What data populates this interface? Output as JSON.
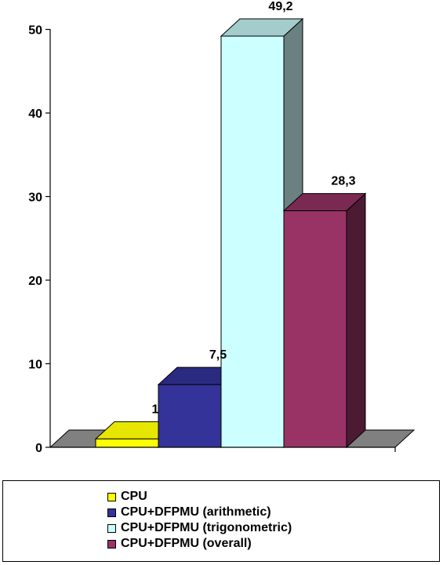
{
  "chart_data": {
    "type": "bar",
    "categories": [
      "CPU",
      "CPU+DFPMU (arithmetic)",
      "CPU+DFPMU (trigonometric)",
      "CPU+DFPMU (overall)"
    ],
    "values": [
      1,
      7.5,
      49.2,
      28.3
    ],
    "data_labels": [
      "1",
      "7,5",
      "49,2",
      "28,3"
    ],
    "title": "",
    "xlabel": "",
    "ylabel": "",
    "ylim": [
      0,
      50
    ],
    "yticks": [
      0,
      10,
      20,
      30,
      40,
      50
    ],
    "grid": false,
    "style": "3d",
    "legend_position": "bottom",
    "legend": [
      "CPU",
      "CPU+DFPMU (arithmetic)",
      "CPU+DFPMU (trigonometric)",
      "CPU+DFPMU (overall)"
    ],
    "colors": [
      "#ffff00",
      "#333399",
      "#ccffff",
      "#993366"
    ],
    "side_colors": [
      "#cccc00",
      "#1a1a4d",
      "#6b8080",
      "#4d1a33"
    ],
    "top_colors": [
      "#e6e600",
      "#2a2a80",
      "#a3cccc",
      "#7a2952"
    ],
    "floor_color": "#808080"
  }
}
